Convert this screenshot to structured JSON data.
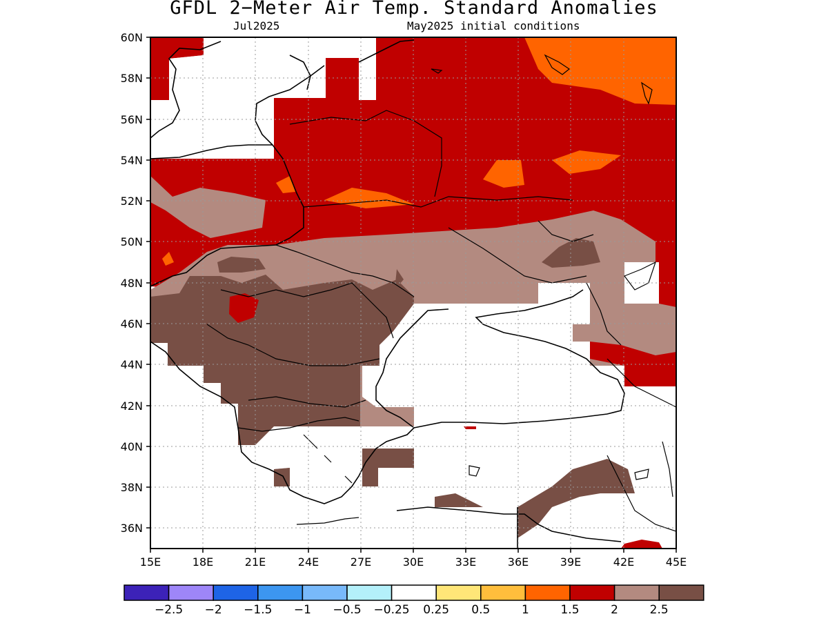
{
  "title": "GFDL 2−Meter Air Temp. Standard Anomalies",
  "subtitle_left": "Jul2025",
  "subtitle_right": "May2025 initial conditions",
  "map": {
    "lon_range": [
      15,
      45
    ],
    "lat_range": [
      35,
      60
    ],
    "lon_ticks": [
      "15E",
      "18E",
      "21E",
      "24E",
      "27E",
      "30E",
      "33E",
      "36E",
      "39E",
      "42E",
      "45E"
    ],
    "lat_ticks": [
      "60N",
      "58N",
      "56N",
      "54N",
      "52N",
      "50N",
      "48N",
      "46N",
      "44N",
      "42N",
      "40N",
      "38N",
      "36N"
    ],
    "grid": "dotted"
  },
  "colorbar": {
    "colors": [
      "#3c22b8",
      "#9e86f8",
      "#1e64e6",
      "#3c96f0",
      "#78b9fa",
      "#b4f0fa",
      "#ffffff",
      "#ffe678",
      "#ffbe3c",
      "#ff6400",
      "#c00000",
      "#b38a80",
      "#784f45"
    ],
    "labels": [
      "−2.5",
      "−2",
      "−1.5",
      "−1",
      "−0.5",
      "−0.25",
      "0.25",
      "0.5",
      "1",
      "1.5",
      "2",
      "2.5"
    ]
  },
  "colors": {
    "anom_1_to_1_5": "#ff6400",
    "anom_1_5_to_2": "#c00000",
    "anom_2_to_2_5": "#b38a80",
    "anom_above_2_5": "#784f45",
    "near_zero": "#ffffff"
  }
}
